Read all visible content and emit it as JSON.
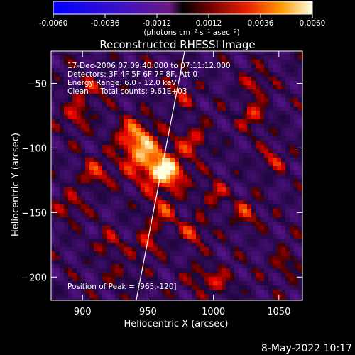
{
  "colorbar": {
    "ticks": [
      "-0.0060",
      "-0.0036",
      "-0.0012",
      "0.0012",
      "0.0036",
      "0.0060"
    ],
    "unit_label": "(photons cm⁻² s⁻¹ asec⁻²)",
    "range": [
      -0.006,
      0.006
    ]
  },
  "chart_data": {
    "type": "heatmap",
    "title": "Reconstructed RHESSI Image",
    "xlabel": "Heliocentric X (arcsec)",
    "ylabel": "Heliocentric Y (arcsec)",
    "xlim": [
      876,
      1068
    ],
    "ylim": [
      -218,
      -25
    ],
    "x_ticks": [
      900,
      950,
      1000,
      1050
    ],
    "y_ticks": [
      -50,
      -100,
      -150,
      -200
    ],
    "annotations": [
      "17-Dec-2006 07:09:40.000 to 07:11:12.000",
      "Detectors: 3F 4F 5F 6F 7F 8F, Att 0",
      "Energy Range: 6.0 - 12.0 keV",
      "Clean     Total counts: 9.61E+03"
    ],
    "peak_label": "Position of Peak = [965,-120]",
    "peak": [
      965,
      -120
    ],
    "limb_line": [
      [
        941,
        -218
      ],
      [
        978,
        -25
      ]
    ],
    "colormap": "red-temperature with blue-violet negatives",
    "value_range": [
      -0.006,
      0.006
    ]
  },
  "footer": {
    "date": "8-May-2022 10:17"
  }
}
